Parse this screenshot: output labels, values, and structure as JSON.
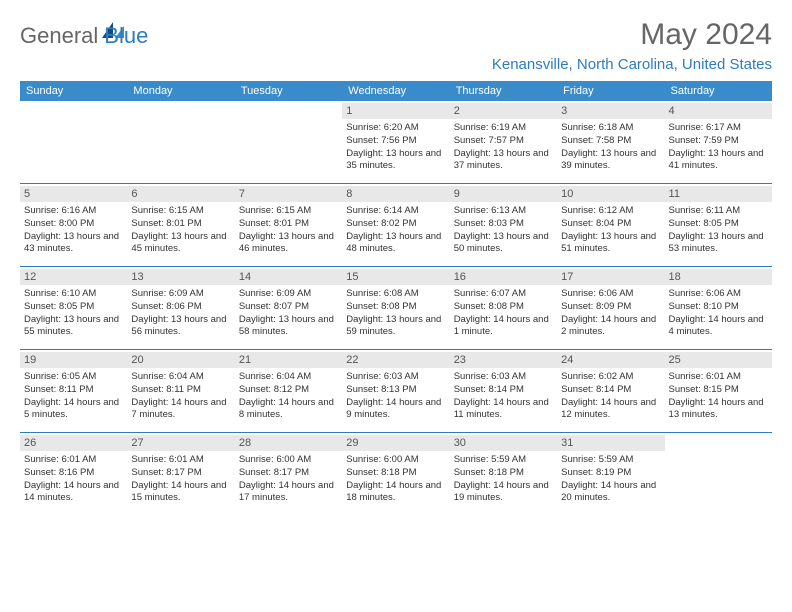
{
  "logo": {
    "part1": "General",
    "part2": "Blue"
  },
  "title": "May 2024",
  "location": "Kenansville, North Carolina, United States",
  "colors": {
    "header_bar": "#3a8bc9",
    "accent": "#2d7cc1",
    "daynum_bg": "#e8e8e8",
    "text": "#333333",
    "title_text": "#666666"
  },
  "weekdays": [
    "Sunday",
    "Monday",
    "Tuesday",
    "Wednesday",
    "Thursday",
    "Friday",
    "Saturday"
  ],
  "weeks": [
    [
      {
        "empty": true
      },
      {
        "empty": true
      },
      {
        "empty": true
      },
      {
        "num": "1",
        "sunrise": "6:20 AM",
        "sunset": "7:56 PM",
        "daylight": "13 hours and 35 minutes."
      },
      {
        "num": "2",
        "sunrise": "6:19 AM",
        "sunset": "7:57 PM",
        "daylight": "13 hours and 37 minutes."
      },
      {
        "num": "3",
        "sunrise": "6:18 AM",
        "sunset": "7:58 PM",
        "daylight": "13 hours and 39 minutes."
      },
      {
        "num": "4",
        "sunrise": "6:17 AM",
        "sunset": "7:59 PM",
        "daylight": "13 hours and 41 minutes."
      }
    ],
    [
      {
        "num": "5",
        "sunrise": "6:16 AM",
        "sunset": "8:00 PM",
        "daylight": "13 hours and 43 minutes."
      },
      {
        "num": "6",
        "sunrise": "6:15 AM",
        "sunset": "8:01 PM",
        "daylight": "13 hours and 45 minutes."
      },
      {
        "num": "7",
        "sunrise": "6:15 AM",
        "sunset": "8:01 PM",
        "daylight": "13 hours and 46 minutes."
      },
      {
        "num": "8",
        "sunrise": "6:14 AM",
        "sunset": "8:02 PM",
        "daylight": "13 hours and 48 minutes."
      },
      {
        "num": "9",
        "sunrise": "6:13 AM",
        "sunset": "8:03 PM",
        "daylight": "13 hours and 50 minutes."
      },
      {
        "num": "10",
        "sunrise": "6:12 AM",
        "sunset": "8:04 PM",
        "daylight": "13 hours and 51 minutes."
      },
      {
        "num": "11",
        "sunrise": "6:11 AM",
        "sunset": "8:05 PM",
        "daylight": "13 hours and 53 minutes."
      }
    ],
    [
      {
        "num": "12",
        "sunrise": "6:10 AM",
        "sunset": "8:05 PM",
        "daylight": "13 hours and 55 minutes."
      },
      {
        "num": "13",
        "sunrise": "6:09 AM",
        "sunset": "8:06 PM",
        "daylight": "13 hours and 56 minutes."
      },
      {
        "num": "14",
        "sunrise": "6:09 AM",
        "sunset": "8:07 PM",
        "daylight": "13 hours and 58 minutes."
      },
      {
        "num": "15",
        "sunrise": "6:08 AM",
        "sunset": "8:08 PM",
        "daylight": "13 hours and 59 minutes."
      },
      {
        "num": "16",
        "sunrise": "6:07 AM",
        "sunset": "8:08 PM",
        "daylight": "14 hours and 1 minute."
      },
      {
        "num": "17",
        "sunrise": "6:06 AM",
        "sunset": "8:09 PM",
        "daylight": "14 hours and 2 minutes."
      },
      {
        "num": "18",
        "sunrise": "6:06 AM",
        "sunset": "8:10 PM",
        "daylight": "14 hours and 4 minutes."
      }
    ],
    [
      {
        "num": "19",
        "sunrise": "6:05 AM",
        "sunset": "8:11 PM",
        "daylight": "14 hours and 5 minutes."
      },
      {
        "num": "20",
        "sunrise": "6:04 AM",
        "sunset": "8:11 PM",
        "daylight": "14 hours and 7 minutes."
      },
      {
        "num": "21",
        "sunrise": "6:04 AM",
        "sunset": "8:12 PM",
        "daylight": "14 hours and 8 minutes."
      },
      {
        "num": "22",
        "sunrise": "6:03 AM",
        "sunset": "8:13 PM",
        "daylight": "14 hours and 9 minutes."
      },
      {
        "num": "23",
        "sunrise": "6:03 AM",
        "sunset": "8:14 PM",
        "daylight": "14 hours and 11 minutes."
      },
      {
        "num": "24",
        "sunrise": "6:02 AM",
        "sunset": "8:14 PM",
        "daylight": "14 hours and 12 minutes."
      },
      {
        "num": "25",
        "sunrise": "6:01 AM",
        "sunset": "8:15 PM",
        "daylight": "14 hours and 13 minutes."
      }
    ],
    [
      {
        "num": "26",
        "sunrise": "6:01 AM",
        "sunset": "8:16 PM",
        "daylight": "14 hours and 14 minutes."
      },
      {
        "num": "27",
        "sunrise": "6:01 AM",
        "sunset": "8:17 PM",
        "daylight": "14 hours and 15 minutes."
      },
      {
        "num": "28",
        "sunrise": "6:00 AM",
        "sunset": "8:17 PM",
        "daylight": "14 hours and 17 minutes."
      },
      {
        "num": "29",
        "sunrise": "6:00 AM",
        "sunset": "8:18 PM",
        "daylight": "14 hours and 18 minutes."
      },
      {
        "num": "30",
        "sunrise": "5:59 AM",
        "sunset": "8:18 PM",
        "daylight": "14 hours and 19 minutes."
      },
      {
        "num": "31",
        "sunrise": "5:59 AM",
        "sunset": "8:19 PM",
        "daylight": "14 hours and 20 minutes."
      },
      {
        "empty": true
      }
    ]
  ]
}
